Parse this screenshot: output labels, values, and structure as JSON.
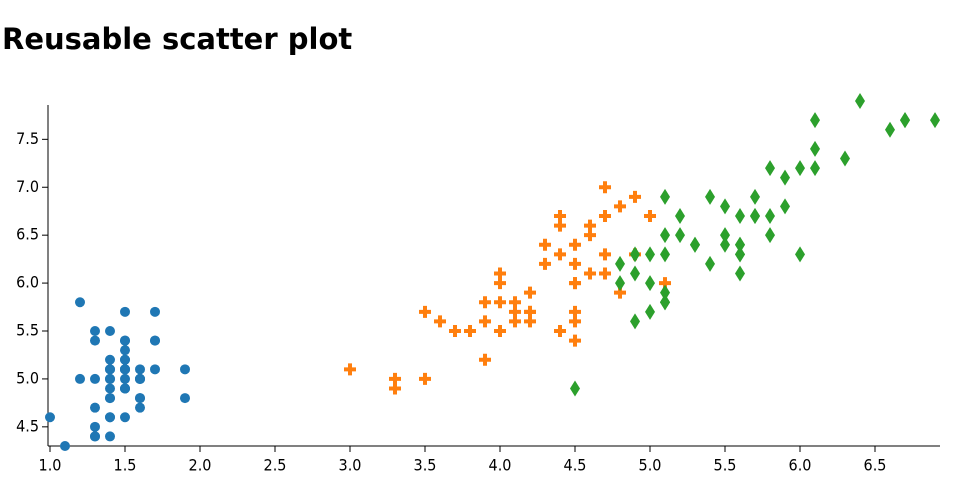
{
  "chart_data": {
    "type": "scatter",
    "title": "Reusable scatter plot",
    "xlim": [
      1.0,
      6.9
    ],
    "ylim": [
      4.3,
      7.9
    ],
    "xticks": [
      {
        "value": 1.0,
        "label": "1.0"
      },
      1.5,
      {
        "value": 2.0,
        "label": "2.0"
      },
      2.5,
      {
        "value": 3.0,
        "label": "3.0"
      },
      3.5,
      {
        "value": 4.0,
        "label": "4.0"
      },
      4.5,
      {
        "value": 5.0,
        "label": "5.0"
      },
      5.5,
      {
        "value": 6.0,
        "label": "6.0"
      },
      6.5
    ],
    "yticks": [
      4.5,
      {
        "value": 5.0,
        "label": "5.0"
      },
      5.5,
      {
        "value": 6.0,
        "label": "6.0"
      },
      6.5,
      {
        "value": 7.0,
        "label": "7.0"
      },
      7.5
    ],
    "series": [
      {
        "color": "#1f77b4",
        "marker": "circle",
        "x": [
          1.4,
          1.4,
          1.3,
          1.5,
          1.4,
          1.7,
          1.4,
          1.5,
          1.4,
          1.5,
          1.5,
          1.6,
          1.4,
          1.1,
          1.2,
          1.5,
          1.3,
          1.4,
          1.7,
          1.5,
          1.7,
          1.5,
          1.0,
          1.7,
          1.9,
          1.6,
          1.6,
          1.5,
          1.4,
          1.6,
          1.6,
          1.5,
          1.5,
          1.4,
          1.5,
          1.2,
          1.3,
          1.5,
          1.3,
          1.5,
          1.3,
          1.3,
          1.3,
          1.6,
          1.9,
          1.4,
          1.6,
          1.4,
          1.5,
          1.4
        ],
        "values": [
          5.1,
          4.9,
          4.7,
          4.6,
          5.0,
          5.4,
          4.6,
          5.0,
          4.4,
          4.9,
          5.4,
          4.8,
          4.8,
          4.3,
          5.8,
          5.7,
          5.4,
          5.1,
          5.7,
          5.1,
          5.4,
          5.1,
          4.6,
          5.1,
          4.8,
          5.0,
          5.0,
          5.2,
          5.2,
          4.7,
          4.8,
          5.4,
          5.2,
          5.5,
          4.9,
          5.0,
          5.5,
          4.9,
          4.4,
          5.1,
          5.0,
          4.5,
          4.4,
          5.0,
          5.1,
          4.8,
          5.1,
          4.6,
          5.3,
          5.0
        ]
      },
      {
        "color": "#ff7f0e",
        "marker": "cross",
        "x": [
          4.7,
          4.5,
          4.9,
          4.0,
          4.6,
          4.5,
          4.7,
          3.3,
          4.6,
          3.9,
          3.5,
          4.2,
          4.0,
          4.7,
          3.6,
          4.4,
          4.5,
          4.1,
          4.5,
          3.9,
          4.8,
          4.0,
          4.9,
          4.7,
          4.3,
          4.4,
          4.8,
          5.0,
          4.5,
          3.5,
          3.8,
          3.7,
          3.9,
          5.1,
          4.5,
          4.5,
          4.7,
          4.4,
          4.1,
          4.0,
          4.4,
          4.6,
          4.0,
          3.3,
          4.2,
          4.2,
          4.2,
          4.3,
          3.0,
          4.1
        ],
        "values": [
          7.0,
          6.4,
          6.9,
          5.5,
          6.5,
          5.7,
          6.3,
          4.9,
          6.6,
          5.2,
          5.0,
          5.9,
          6.0,
          6.1,
          5.6,
          6.7,
          5.6,
          5.8,
          6.2,
          5.6,
          5.9,
          6.1,
          6.3,
          6.1,
          6.4,
          6.6,
          6.8,
          6.7,
          6.0,
          5.7,
          5.5,
          5.5,
          5.8,
          6.0,
          5.4,
          6.0,
          6.7,
          6.3,
          5.6,
          5.5,
          5.5,
          6.1,
          5.8,
          5.0,
          5.6,
          5.7,
          5.7,
          6.2,
          5.1,
          5.7
        ]
      },
      {
        "color": "#2ca02c",
        "marker": "diamond",
        "x": [
          6.0,
          5.1,
          5.9,
          5.6,
          5.8,
          6.6,
          4.5,
          6.3,
          5.8,
          6.1,
          5.1,
          5.3,
          5.5,
          5.0,
          5.1,
          5.3,
          5.5,
          6.7,
          6.9,
          5.0,
          5.7,
          4.9,
          6.7,
          4.9,
          5.7,
          6.0,
          4.8,
          4.9,
          5.6,
          5.8,
          6.1,
          6.4,
          5.6,
          5.1,
          5.6,
          6.1,
          5.6,
          5.5,
          4.8,
          5.4,
          5.6,
          5.1,
          5.1,
          5.9,
          5.7,
          5.2,
          5.0,
          5.2,
          5.4,
          5.1
        ],
        "values": [
          6.3,
          5.8,
          7.1,
          6.3,
          6.5,
          7.6,
          4.9,
          7.3,
          6.7,
          7.2,
          6.5,
          6.4,
          6.8,
          5.7,
          5.8,
          6.4,
          6.5,
          7.7,
          7.7,
          6.0,
          6.9,
          5.6,
          7.7,
          6.3,
          6.7,
          7.2,
          6.2,
          6.1,
          6.4,
          7.2,
          7.4,
          7.9,
          6.4,
          6.3,
          6.1,
          7.7,
          6.3,
          6.4,
          6.0,
          6.9,
          6.7,
          6.9,
          5.8,
          6.8,
          6.7,
          6.7,
          6.3,
          6.5,
          6.2,
          5.9
        ]
      }
    ]
  }
}
